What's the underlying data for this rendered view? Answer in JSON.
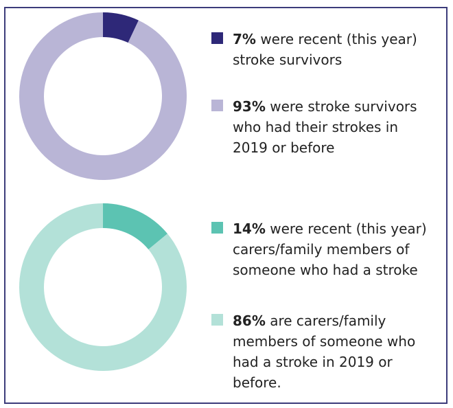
{
  "colors": {
    "frame": "#3b3b7a",
    "recent_survivors": "#2e2878",
    "older_survivors": "#b9b5d6",
    "recent_carers": "#5cc3b2",
    "older_carers": "#b3e1d8"
  },
  "chart_data": [
    {
      "type": "pie",
      "categories": [
        "were recent (this year) stroke survivors",
        "were stroke survivors who had their strokes in 2019 or before"
      ],
      "values": [
        7,
        93
      ],
      "colors": [
        "#2e2878",
        "#b9b5d6"
      ],
      "legend": [
        {
          "value": "7%",
          "text": " were recent (this year) stroke survivors",
          "color": "#2e2878"
        },
        {
          "value": "93%",
          "text": " were stroke survivors who had their strokes in 2019 or before",
          "color": "#b9b5d6"
        }
      ]
    },
    {
      "type": "pie",
      "categories": [
        "were recent (this year) carers/family members of someone who had a stroke",
        "are carers/family members of someone who had a stroke in 2019 or before."
      ],
      "values": [
        14,
        86
      ],
      "colors": [
        "#5cc3b2",
        "#b3e1d8"
      ],
      "legend": [
        {
          "value": "14%",
          "text": " were recent (this year) carers/family members of someone who had a stroke",
          "color": "#5cc3b2"
        },
        {
          "value": "86%",
          "text": " are carers/family members of someone who had a stroke in 2019 or before.",
          "color": "#b3e1d8"
        }
      ]
    }
  ]
}
